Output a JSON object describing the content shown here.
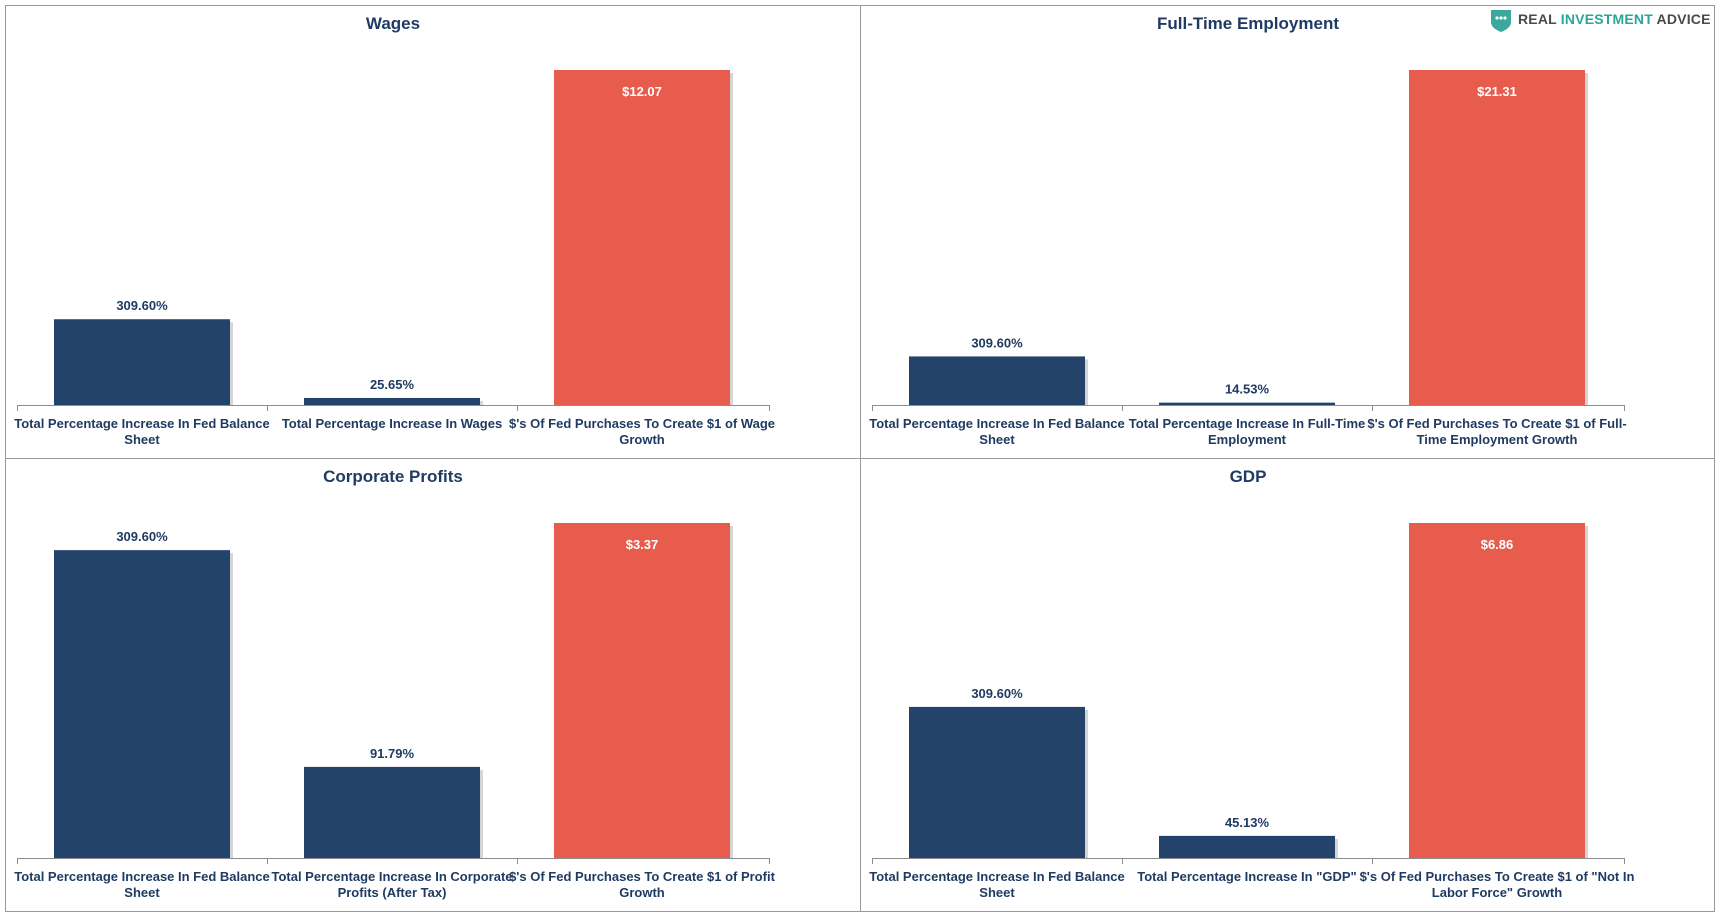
{
  "colors": {
    "fed": "#23436b",
    "ratio": "#e85c4d",
    "title": "#1f3b63"
  },
  "logo": {
    "part1": "REAL ",
    "part2": "INVESTMENT",
    "part3": " ADVICE",
    "icon": "shield-chat-icon"
  },
  "chart_data": [
    {
      "type": "bar",
      "title": "Wages",
      "categories": [
        "Total Percentage Increase In Fed Balance Sheet",
        "Total Percentage Increase In Wages",
        "$'s Of Fed Purchases To Create $1 of Wage Growth"
      ],
      "values": [
        309.6,
        25.65,
        12.07
      ],
      "value_labels": [
        "309.60%",
        "25.65%",
        "$12.07"
      ],
      "category_lines": [
        [
          "Total Percentage Increase In Fed Balance",
          "Sheet"
        ],
        [
          "Total Percentage Increase In Wages"
        ],
        [
          "$'s Of Fed Purchases To Create $1 of Wage",
          "Growth"
        ]
      ],
      "bar_colors": [
        "fed",
        "fed",
        "ratio"
      ],
      "bar_heights_pct": [
        25.6,
        2.1,
        100
      ]
    },
    {
      "type": "bar",
      "title": "Full-Time Employment",
      "categories": [
        "Total Percentage Increase In Fed Balance Sheet",
        "Total Percentage Increase In Full-Time Employment",
        "$'s Of Fed Purchases To Create $1 of Full-Time Employment Growth"
      ],
      "values": [
        309.6,
        14.53,
        21.31
      ],
      "value_labels": [
        "309.60%",
        "14.53%",
        "$21.31"
      ],
      "category_lines": [
        [
          "Total Percentage Increase In Fed Balance",
          "Sheet"
        ],
        [
          "Total Percentage Increase In Full-Time",
          "Employment"
        ],
        [
          "$'s Of Fed Purchases To Create $1 of Full-",
          "Time Employment Growth"
        ]
      ],
      "bar_colors": [
        "fed",
        "fed",
        "ratio"
      ],
      "bar_heights_pct": [
        14.5,
        0.7,
        100
      ]
    },
    {
      "type": "bar",
      "title": "Corporate Profits",
      "categories": [
        "Total Percentage Increase In Fed Balance Sheet",
        "Total Percentage Increase In Corporate Profits (After Tax)",
        "$'s Of Fed Purchases To Create $1 of Profit Growth"
      ],
      "values": [
        309.6,
        91.79,
        3.37
      ],
      "value_labels": [
        "309.60%",
        "91.79%",
        "$3.37"
      ],
      "category_lines": [
        [
          "Total Percentage Increase In Fed Balance",
          "Sheet"
        ],
        [
          "Total Percentage Increase In Corporate",
          "Profits (After Tax)"
        ],
        [
          "$'s Of Fed Purchases To Create $1 of Profit",
          "Growth"
        ]
      ],
      "bar_colors": [
        "fed",
        "fed",
        "ratio"
      ],
      "bar_heights_pct": [
        91.9,
        27.2,
        100
      ]
    },
    {
      "type": "bar",
      "title": "GDP",
      "categories": [
        "Total Percentage Increase In Fed Balance Sheet",
        "Total Percentage Increase In \"GDP\"",
        "$'s Of Fed Purchases To Create $1 of \"Not In Labor Force\" Growth"
      ],
      "values": [
        309.6,
        45.13,
        6.86
      ],
      "value_labels": [
        "309.60%",
        "45.13%",
        "$6.86"
      ],
      "category_lines": [
        [
          "Total Percentage Increase In Fed Balance",
          "Sheet"
        ],
        [
          "Total Percentage Increase In \"GDP\""
        ],
        [
          "$'s Of Fed Purchases To Create $1 of \"Not In",
          "Labor Force\" Growth"
        ]
      ],
      "bar_colors": [
        "fed",
        "fed",
        "ratio"
      ],
      "bar_heights_pct": [
        45.1,
        6.6,
        100
      ]
    }
  ]
}
